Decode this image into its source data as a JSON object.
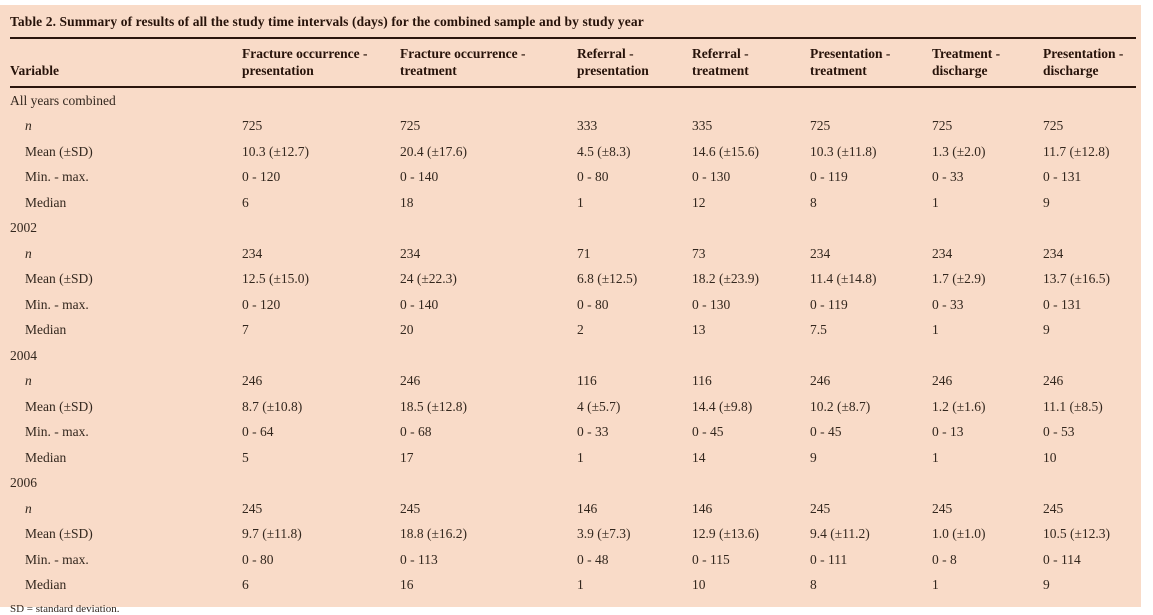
{
  "title": "Table 2. Summary of results of all the study time intervals (days) for the combined sample and by study year",
  "footnote": "SD = standard deviation.",
  "colors": {
    "page_background": "#ffffff",
    "panel_background": "#f9dbc8",
    "rule": "#2b150c",
    "heading_text": "#27130a",
    "body_text": "#33271e"
  },
  "table": {
    "variable_header": "Variable",
    "columns": [
      "Fracture occurrence - presentation",
      "Fracture occurrence - treatment",
      "Referral - presentation",
      "Referral - treatment",
      "Presentation - treatment",
      "Treatment - discharge",
      "Presentation - discharge"
    ],
    "row_labels": [
      "n",
      "Mean (±SD)",
      "Min. - max.",
      "Median"
    ],
    "sections": [
      {
        "label": "All years combined",
        "rows": [
          {
            "label": "n",
            "values": [
              "725",
              "725",
              "333",
              "335",
              "725",
              "725",
              "725"
            ]
          },
          {
            "label": "Mean (±SD)",
            "values": [
              "10.3 (±12.7)",
              "20.4 (±17.6)",
              "4.5 (±8.3)",
              "14.6 (±15.6)",
              "10.3 (±11.8)",
              "1.3 (±2.0)",
              "11.7 (±12.8)"
            ]
          },
          {
            "label": "Min. - max.",
            "values": [
              "0 - 120",
              "0 - 140",
              "0 - 80",
              "0 - 130",
              "0 - 119",
              "0 - 33",
              "0 - 131"
            ]
          },
          {
            "label": "Median",
            "values": [
              "6",
              "18",
              "1",
              "12",
              "8",
              "1",
              "9"
            ]
          }
        ]
      },
      {
        "label": "2002",
        "rows": [
          {
            "label": "n",
            "values": [
              "234",
              "234",
              "71",
              "73",
              "234",
              "234",
              "234"
            ]
          },
          {
            "label": "Mean (±SD)",
            "values": [
              "12.5 (±15.0)",
              "24 (±22.3)",
              "6.8 (±12.5)",
              "18.2 (±23.9)",
              "11.4 (±14.8)",
              "1.7 (±2.9)",
              "13.7 (±16.5)"
            ]
          },
          {
            "label": "Min. - max.",
            "values": [
              "0 - 120",
              "0 - 140",
              "0 - 80",
              "0 - 130",
              "0 - 119",
              "0 - 33",
              "0 - 131"
            ]
          },
          {
            "label": "Median",
            "values": [
              "7",
              "20",
              "2",
              "13",
              "7.5",
              "1",
              "9"
            ]
          }
        ]
      },
      {
        "label": "2004",
        "rows": [
          {
            "label": "n",
            "values": [
              "246",
              "246",
              "116",
              "116",
              "246",
              "246",
              "246"
            ]
          },
          {
            "label": "Mean (±SD)",
            "values": [
              "8.7 (±10.8)",
              "18.5 (±12.8)",
              "4 (±5.7)",
              "14.4 (±9.8)",
              "10.2 (±8.7)",
              "1.2 (±1.6)",
              "11.1 (±8.5)"
            ]
          },
          {
            "label": "Min. - max.",
            "values": [
              "0 - 64",
              "0 - 68",
              "0 - 33",
              "0 - 45",
              "0 - 45",
              "0 - 13",
              "0 - 53"
            ]
          },
          {
            "label": "Median",
            "values": [
              "5",
              "17",
              "1",
              "14",
              "9",
              "1",
              "10"
            ]
          }
        ]
      },
      {
        "label": "2006",
        "rows": [
          {
            "label": "n",
            "values": [
              "245",
              "245",
              "146",
              "146",
              "245",
              "245",
              "245"
            ]
          },
          {
            "label": "Mean (±SD)",
            "values": [
              "9.7 (±11.8)",
              "18.8 (±16.2)",
              "3.9 (±7.3)",
              "12.9 (±13.6)",
              "9.4 (±11.2)",
              "1.0 (±1.0)",
              "10.5 (±12.3)"
            ]
          },
          {
            "label": "Min. - max.",
            "values": [
              "0 - 80",
              "0 - 113",
              "0 - 48",
              "0 - 115",
              "0 - 111",
              "0 - 8",
              "0 - 114"
            ]
          },
          {
            "label": "Median",
            "values": [
              "6",
              "16",
              "1",
              "10",
              "8",
              "1",
              "9"
            ]
          }
        ]
      }
    ]
  }
}
